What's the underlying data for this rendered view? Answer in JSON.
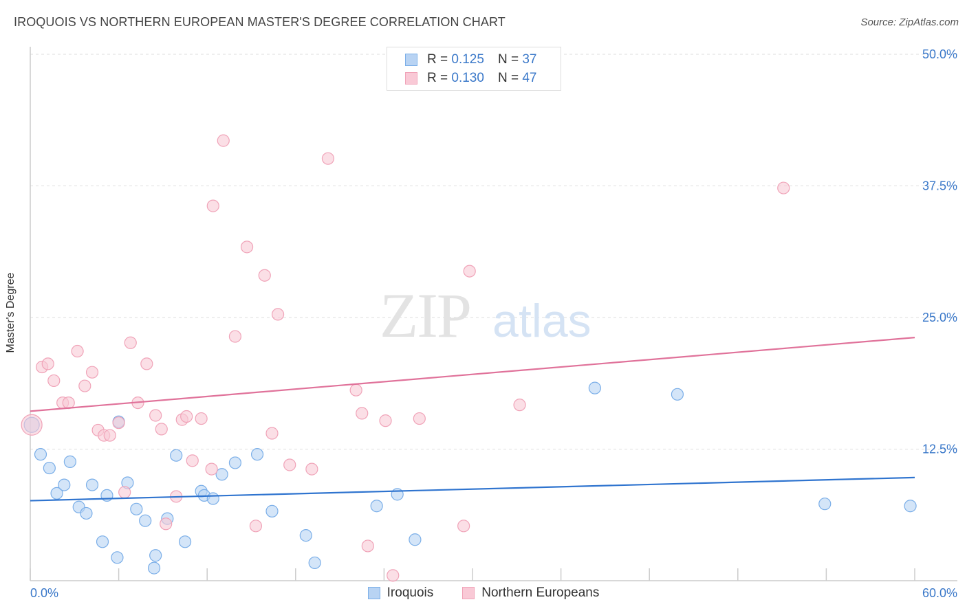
{
  "title": "IROQUOIS VS NORTHERN EUROPEAN MASTER'S DEGREE CORRELATION CHART",
  "source": "Source: ZipAtlas.com",
  "legend": {
    "rows": [
      {
        "r_label": "R =",
        "r_value": "0.125",
        "n_label": "N =",
        "n_value": "37"
      },
      {
        "r_label": "R =",
        "r_value": "0.130",
        "n_label": "N =",
        "n_value": "47"
      }
    ]
  },
  "watermark": {
    "zip": "ZIP",
    "atlas": "atlas"
  },
  "chart_data": {
    "type": "scatter",
    "title": "IROQUOIS VS NORTHERN EUROPEAN MASTER'S DEGREE CORRELATION CHART",
    "xlabel": "",
    "ylabel": "Master's Degree",
    "xlim": [
      0,
      60
    ],
    "ylim": [
      0,
      50
    ],
    "x_tick_labels": [
      "0.0%",
      "60.0%"
    ],
    "y_tick_labels": [
      "12.5%",
      "25.0%",
      "37.5%",
      "50.0%"
    ],
    "y_ticks": [
      12.5,
      25.0,
      37.5,
      50.0
    ],
    "grid": true,
    "legend_position": "top-center",
    "series": [
      {
        "name": "Iroquois",
        "color": "#7aaee8",
        "fill": "#b8d3f3",
        "trend": {
          "x": [
            0,
            60
          ],
          "y": [
            7.6,
            9.8
          ]
        },
        "points": [
          [
            0.1,
            14.8
          ],
          [
            0.7,
            12.0
          ],
          [
            1.3,
            10.7
          ],
          [
            1.8,
            8.3
          ],
          [
            2.3,
            9.1
          ],
          [
            2.7,
            11.3
          ],
          [
            3.3,
            7.0
          ],
          [
            3.8,
            6.4
          ],
          [
            4.2,
            9.1
          ],
          [
            4.9,
            3.7
          ],
          [
            5.2,
            8.1
          ],
          [
            5.9,
            2.2
          ],
          [
            6.0,
            15.1
          ],
          [
            6.6,
            9.3
          ],
          [
            7.2,
            6.8
          ],
          [
            7.8,
            5.7
          ],
          [
            8.4,
            1.2
          ],
          [
            8.5,
            2.4
          ],
          [
            9.3,
            5.9
          ],
          [
            9.9,
            11.9
          ],
          [
            10.5,
            3.7
          ],
          [
            11.6,
            8.5
          ],
          [
            11.8,
            8.1
          ],
          [
            12.4,
            7.8
          ],
          [
            13.0,
            10.1
          ],
          [
            13.9,
            11.2
          ],
          [
            15.4,
            12.0
          ],
          [
            16.4,
            6.6
          ],
          [
            18.7,
            4.3
          ],
          [
            19.3,
            1.7
          ],
          [
            23.5,
            7.1
          ],
          [
            24.9,
            8.2
          ],
          [
            26.1,
            3.9
          ],
          [
            38.3,
            18.3
          ],
          [
            43.9,
            17.7
          ],
          [
            53.9,
            7.3
          ],
          [
            59.7,
            7.1
          ]
        ]
      },
      {
        "name": "Northern Europeans",
        "color": "#f0a3b8",
        "fill": "#f9c9d6",
        "trend": {
          "x": [
            0,
            60
          ],
          "y": [
            16.1,
            23.1
          ]
        },
        "points": [
          [
            0.1,
            14.8
          ],
          [
            0.8,
            20.3
          ],
          [
            1.2,
            20.6
          ],
          [
            1.6,
            19.0
          ],
          [
            2.2,
            16.9
          ],
          [
            2.6,
            16.9
          ],
          [
            3.2,
            21.8
          ],
          [
            3.7,
            18.5
          ],
          [
            4.2,
            19.8
          ],
          [
            4.6,
            14.3
          ],
          [
            5.0,
            13.8
          ],
          [
            5.4,
            13.8
          ],
          [
            6.0,
            15.0
          ],
          [
            6.4,
            8.4
          ],
          [
            6.8,
            22.6
          ],
          [
            7.3,
            16.9
          ],
          [
            7.9,
            20.6
          ],
          [
            8.5,
            15.7
          ],
          [
            8.9,
            14.4
          ],
          [
            9.2,
            5.4
          ],
          [
            9.9,
            8.0
          ],
          [
            10.3,
            15.3
          ],
          [
            10.6,
            15.6
          ],
          [
            11.0,
            11.4
          ],
          [
            11.6,
            15.4
          ],
          [
            12.3,
            10.6
          ],
          [
            13.1,
            41.8
          ],
          [
            12.4,
            35.6
          ],
          [
            13.9,
            23.2
          ],
          [
            14.7,
            31.7
          ],
          [
            15.3,
            5.2
          ],
          [
            15.9,
            29.0
          ],
          [
            16.4,
            14.0
          ],
          [
            16.8,
            25.3
          ],
          [
            17.6,
            11.0
          ],
          [
            19.1,
            10.6
          ],
          [
            20.2,
            40.1
          ],
          [
            22.1,
            18.1
          ],
          [
            22.5,
            15.9
          ],
          [
            22.9,
            3.3
          ],
          [
            24.1,
            15.2
          ],
          [
            24.6,
            0.5
          ],
          [
            26.4,
            15.4
          ],
          [
            29.4,
            5.2
          ],
          [
            29.8,
            29.4
          ],
          [
            33.2,
            16.7
          ],
          [
            51.1,
            37.3
          ]
        ]
      }
    ]
  },
  "bottom_legend": [
    {
      "label": "Iroquois",
      "color": "#b8d3f3",
      "border": "#7aaee8"
    },
    {
      "label": "Northern Europeans",
      "color": "#f9c9d6",
      "border": "#f0a3b8"
    }
  ]
}
